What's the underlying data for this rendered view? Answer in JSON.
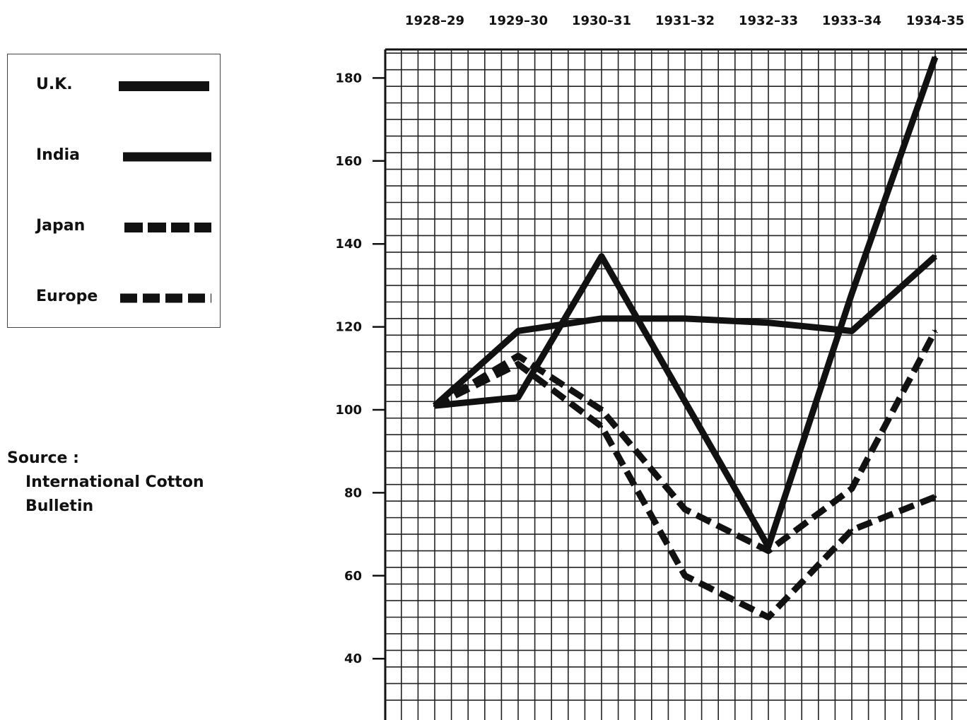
{
  "legend": {
    "entries": [
      {
        "label": "U.K.",
        "style": "solid-thick"
      },
      {
        "label": "India",
        "style": "solid"
      },
      {
        "label": "Japan",
        "style": "dashed"
      },
      {
        "label": "Europe",
        "style": "dashed-fine"
      }
    ]
  },
  "source": {
    "heading": "Source :",
    "line1": "International Cotton",
    "line2": "Bulletin"
  },
  "chart_data": {
    "type": "line",
    "categories": [
      "1928–29",
      "1929–30",
      "1930–31",
      "1931–32",
      "1932–33",
      "1933–34",
      "1934-35"
    ],
    "ylim": [
      30,
      190
    ],
    "yticks": [
      40,
      60,
      80,
      100,
      120,
      140,
      160,
      180
    ],
    "grid": true,
    "legend_position": "left",
    "series": [
      {
        "name": "U.K.",
        "values": [
          101,
          103,
          137,
          102,
          67,
          128,
          185
        ],
        "dash": "solid"
      },
      {
        "name": "India",
        "values": [
          101,
          119,
          122,
          122,
          121,
          119,
          137
        ],
        "dash": "solid"
      },
      {
        "name": "Japan",
        "values": [
          101,
          113,
          100,
          76,
          66,
          81,
          119
        ],
        "dash": "dashed"
      },
      {
        "name": "Europe",
        "values": [
          101,
          111,
          96,
          60,
          50,
          71,
          79
        ],
        "dash": "dashed"
      }
    ],
    "color": "#111111"
  }
}
